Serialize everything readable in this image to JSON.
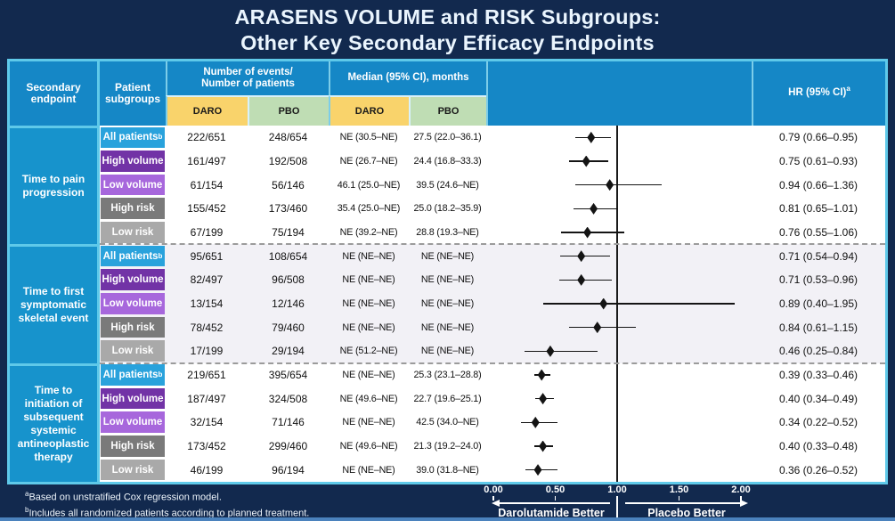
{
  "title": {
    "line1": "ARASENS VOLUME and RISK Subgroups:",
    "line2": "Other Key Secondary Efficacy Endpoints"
  },
  "table": {
    "headers": {
      "secondary_endpoint": "Secondary endpoint",
      "patient_subgroups": "Patient subgroups",
      "events_line1": "Number of events/",
      "events_line2": "Number of patients",
      "median": "Median (95% CI), months",
      "daro": "DARO",
      "pbo": "PBO",
      "hr": "HR (95% CI)",
      "hr_sup": "a"
    }
  },
  "badge_colors": {
    "all_patients": "#29A2DC",
    "high_volume": "#7233A6",
    "low_volume": "#A767DC",
    "high_risk": "#7A7A7A",
    "low_risk": "#A9A9A9"
  },
  "groups": [
    {
      "endpoint": "Time to pain progression",
      "rows": [
        {
          "subgroup": "All patients",
          "sup": "b",
          "subgroup_key": "all_patients",
          "events_daro": "222/651",
          "events_pbo": "248/654",
          "median_daro": "NE (30.5–NE)",
          "median_pbo": "27.5 (22.0–36.1)",
          "hr_text": "0.79 (0.66–0.95)"
        },
        {
          "subgroup": "High volume",
          "sup": "",
          "subgroup_key": "high_volume",
          "events_daro": "161/497",
          "events_pbo": "192/508",
          "median_daro": "NE (26.7–NE)",
          "median_pbo": "24.4 (16.8–33.3)",
          "hr_text": "0.75 (0.61–0.93)"
        },
        {
          "subgroup": "Low volume",
          "sup": "",
          "subgroup_key": "low_volume",
          "events_daro": "61/154",
          "events_pbo": "56/146",
          "median_daro": "46.1 (25.0–NE)",
          "median_pbo": "39.5 (24.6–NE)",
          "hr_text": "0.94 (0.66–1.36)"
        },
        {
          "subgroup": "High risk",
          "sup": "",
          "subgroup_key": "high_risk",
          "events_daro": "155/452",
          "events_pbo": "173/460",
          "median_daro": "35.4 (25.0–NE)",
          "median_pbo": "25.0 (18.2–35.9)",
          "hr_text": "0.81 (0.65–1.01)"
        },
        {
          "subgroup": "Low risk",
          "sup": "",
          "subgroup_key": "low_risk",
          "events_daro": "67/199",
          "events_pbo": "75/194",
          "median_daro": "NE (39.2–NE)",
          "median_pbo": "28.8 (19.3–NE)",
          "hr_text": "0.76 (0.55–1.06)"
        }
      ]
    },
    {
      "endpoint": "Time to first symptomatic skeletal event",
      "rows": [
        {
          "subgroup": "All patients",
          "sup": "b",
          "subgroup_key": "all_patients",
          "events_daro": "95/651",
          "events_pbo": "108/654",
          "median_daro": "NE (NE–NE)",
          "median_pbo": "NE (NE–NE)",
          "hr_text": "0.71 (0.54–0.94)"
        },
        {
          "subgroup": "High volume",
          "sup": "",
          "subgroup_key": "high_volume",
          "events_daro": "82/497",
          "events_pbo": "96/508",
          "median_daro": "NE (NE–NE)",
          "median_pbo": "NE (NE–NE)",
          "hr_text": "0.71 (0.53–0.96)"
        },
        {
          "subgroup": "Low volume",
          "sup": "",
          "subgroup_key": "low_volume",
          "events_daro": "13/154",
          "events_pbo": "12/146",
          "median_daro": "NE (NE–NE)",
          "median_pbo": "NE (NE–NE)",
          "hr_text": "0.89 (0.40–1.95)"
        },
        {
          "subgroup": "High risk",
          "sup": "",
          "subgroup_key": "high_risk",
          "events_daro": "78/452",
          "events_pbo": "79/460",
          "median_daro": "NE (NE–NE)",
          "median_pbo": "NE (NE–NE)",
          "hr_text": "0.84 (0.61–1.15)"
        },
        {
          "subgroup": "Low risk",
          "sup": "",
          "subgroup_key": "low_risk",
          "events_daro": "17/199",
          "events_pbo": "29/194",
          "median_daro": "NE (51.2–NE)",
          "median_pbo": "NE (NE–NE)",
          "hr_text": "0.46 (0.25–0.84)"
        }
      ]
    },
    {
      "endpoint": "Time to initiation of subsequent systemic antineoplastic therapy",
      "rows": [
        {
          "subgroup": "All patients",
          "sup": "b",
          "subgroup_key": "all_patients",
          "events_daro": "219/651",
          "events_pbo": "395/654",
          "median_daro": "NE (NE–NE)",
          "median_pbo": "25.3 (23.1–28.8)",
          "hr_text": "0.39 (0.33–0.46)"
        },
        {
          "subgroup": "High volume",
          "sup": "",
          "subgroup_key": "high_volume",
          "events_daro": "187/497",
          "events_pbo": "324/508",
          "median_daro": "NE (49.6–NE)",
          "median_pbo": "22.7 (19.6–25.1)",
          "hr_text": "0.40 (0.34–0.49)"
        },
        {
          "subgroup": "Low volume",
          "sup": "",
          "subgroup_key": "low_volume",
          "events_daro": "32/154",
          "events_pbo": "71/146",
          "median_daro": "NE (NE–NE)",
          "median_pbo": "42.5 (34.0–NE)",
          "hr_text": "0.34 (0.22–0.52)"
        },
        {
          "subgroup": "High risk",
          "sup": "",
          "subgroup_key": "high_risk",
          "events_daro": "173/452",
          "events_pbo": "299/460",
          "median_daro": "NE (49.6–NE)",
          "median_pbo": "21.3 (19.2–24.0)",
          "hr_text": "0.40 (0.33–0.48)"
        },
        {
          "subgroup": "Low risk",
          "sup": "",
          "subgroup_key": "low_risk",
          "events_daro": "46/199",
          "events_pbo": "96/194",
          "median_daro": "NE (NE–NE)",
          "median_pbo": "39.0 (31.8–NE)",
          "hr_text": "0.36 (0.26–0.52)"
        }
      ]
    }
  ],
  "chart_data": {
    "type": "scatter",
    "subtype": "forest-plot",
    "title": "Hazard ratios with 95% CI by endpoint and subgroup",
    "xlim": [
      0,
      2
    ],
    "x_tick_values": [
      0,
      0.5,
      1,
      1.5,
      2
    ],
    "x_tick_labels": [
      "0.00",
      "0.50",
      "1.00",
      "1.50",
      "2.00"
    ],
    "reference_line": 1.0,
    "left_direction_label": "Darolutamide Better",
    "right_direction_label": "Placebo Better",
    "series": [
      {
        "endpoint": "Time to pain progression",
        "points": [
          {
            "subgroup": "All patients",
            "hr": 0.79,
            "ci": [
              0.66,
              0.95
            ]
          },
          {
            "subgroup": "High volume",
            "hr": 0.75,
            "ci": [
              0.61,
              0.93
            ]
          },
          {
            "subgroup": "Low volume",
            "hr": 0.94,
            "ci": [
              0.66,
              1.36
            ]
          },
          {
            "subgroup": "High risk",
            "hr": 0.81,
            "ci": [
              0.65,
              1.01
            ]
          },
          {
            "subgroup": "Low risk",
            "hr": 0.76,
            "ci": [
              0.55,
              1.06
            ]
          }
        ]
      },
      {
        "endpoint": "Time to first symptomatic skeletal event",
        "points": [
          {
            "subgroup": "All patients",
            "hr": 0.71,
            "ci": [
              0.54,
              0.94
            ]
          },
          {
            "subgroup": "High volume",
            "hr": 0.71,
            "ci": [
              0.53,
              0.96
            ]
          },
          {
            "subgroup": "Low volume",
            "hr": 0.89,
            "ci": [
              0.4,
              1.95
            ]
          },
          {
            "subgroup": "High risk",
            "hr": 0.84,
            "ci": [
              0.61,
              1.15
            ]
          },
          {
            "subgroup": "Low risk",
            "hr": 0.46,
            "ci": [
              0.25,
              0.84
            ]
          }
        ]
      },
      {
        "endpoint": "Time to initiation of subsequent systemic antineoplastic therapy",
        "points": [
          {
            "subgroup": "All patients",
            "hr": 0.39,
            "ci": [
              0.33,
              0.46
            ]
          },
          {
            "subgroup": "High volume",
            "hr": 0.4,
            "ci": [
              0.34,
              0.49
            ]
          },
          {
            "subgroup": "Low volume",
            "hr": 0.34,
            "ci": [
              0.22,
              0.52
            ]
          },
          {
            "subgroup": "High risk",
            "hr": 0.4,
            "ci": [
              0.33,
              0.48
            ]
          },
          {
            "subgroup": "Low risk",
            "hr": 0.36,
            "ci": [
              0.26,
              0.52
            ]
          }
        ]
      }
    ]
  },
  "axis": {
    "left_label": "Darolutamide Better",
    "right_label": "Placebo Better"
  },
  "footnotes": [
    {
      "sup": "a",
      "text": "Based on unstratified Cox regression model."
    },
    {
      "sup": "b",
      "text": "Includes all randomized patients according to planned treatment."
    }
  ]
}
